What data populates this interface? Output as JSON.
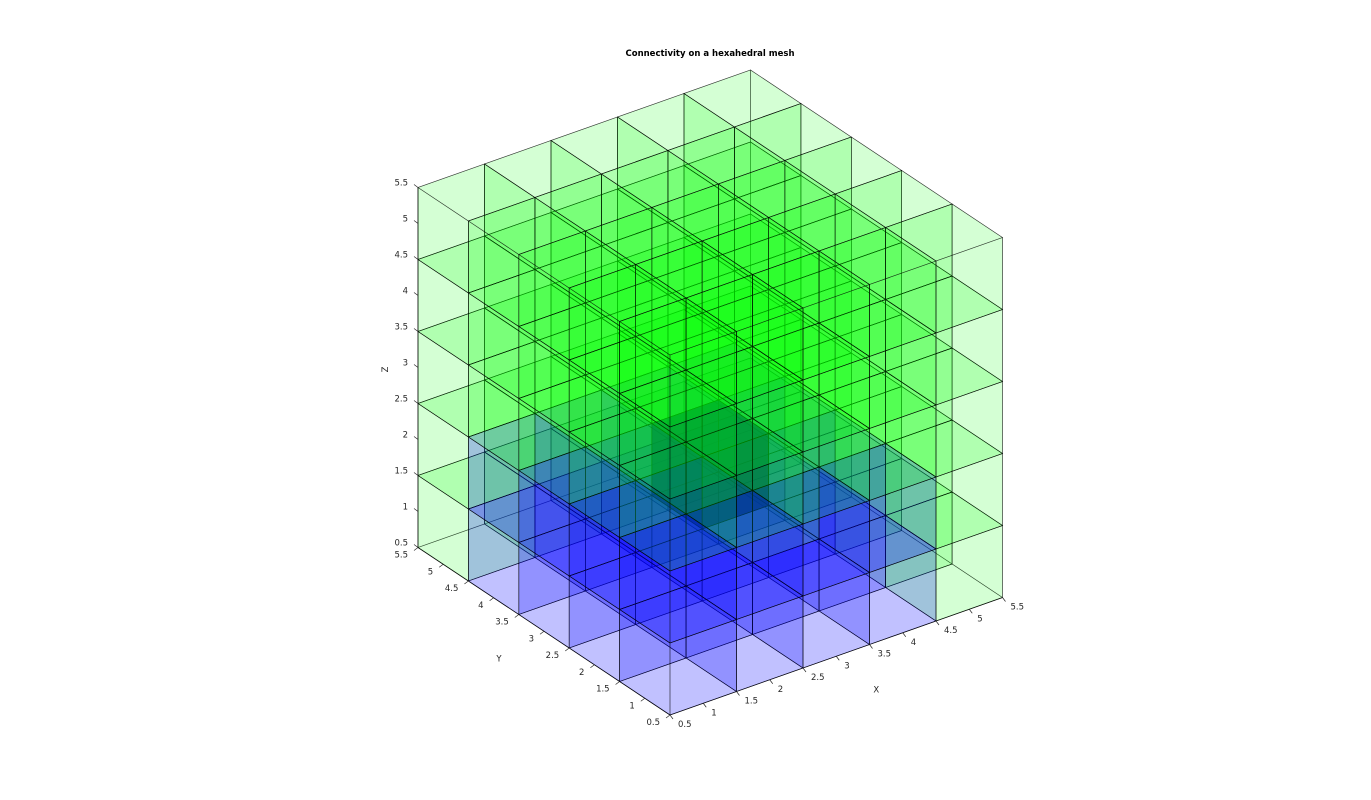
{
  "title": "Connectivity on a hexahedral mesh",
  "axes": {
    "xlabel": "X",
    "ylabel": "Y",
    "zlabel": "Z",
    "x_ticks": [
      "0.5",
      "1",
      "1.5",
      "2",
      "2.5",
      "3",
      "3.5",
      "4",
      "4.5",
      "5",
      "5.5"
    ],
    "y_ticks": [
      "0.5",
      "1",
      "1.5",
      "2",
      "2.5",
      "3",
      "3.5",
      "4",
      "4.5",
      "5",
      "5.5"
    ],
    "z_ticks": [
      "0.5",
      "1",
      "1.5",
      "2",
      "2.5",
      "3",
      "3.5",
      "4",
      "4.5",
      "5",
      "5.5"
    ],
    "range": [
      0.5,
      5.5
    ]
  },
  "mesh": {
    "size": [
      5,
      5,
      5
    ],
    "colors": {
      "green": "#00ff00",
      "blue": "#0000ff",
      "dark": "#000088",
      "edge": "#000000"
    },
    "blue_cells": [
      [
        1,
        1,
        1
      ],
      [
        2,
        1,
        1
      ],
      [
        3,
        1,
        1
      ],
      [
        4,
        1,
        1
      ],
      [
        1,
        2,
        1
      ],
      [
        2,
        2,
        1
      ],
      [
        3,
        2,
        1
      ],
      [
        4,
        2,
        1
      ],
      [
        1,
        3,
        1
      ],
      [
        2,
        3,
        1
      ],
      [
        3,
        3,
        1
      ],
      [
        4,
        3,
        1
      ],
      [
        1,
        4,
        1
      ],
      [
        2,
        4,
        1
      ],
      [
        3,
        4,
        1
      ],
      [
        4,
        4,
        1
      ],
      [
        1,
        1,
        2
      ],
      [
        2,
        1,
        2
      ],
      [
        3,
        1,
        2
      ],
      [
        4,
        1,
        2
      ],
      [
        1,
        2,
        2
      ],
      [
        2,
        2,
        2
      ],
      [
        4,
        2,
        2
      ],
      [
        1,
        3,
        2
      ],
      [
        2,
        3,
        2
      ],
      [
        3,
        3,
        2
      ],
      [
        4,
        3,
        2
      ],
      [
        1,
        4,
        2
      ],
      [
        2,
        4,
        2
      ],
      [
        3,
        4,
        2
      ],
      [
        4,
        4,
        2
      ]
    ],
    "center_cell": [
      3,
      3,
      2
    ]
  }
}
